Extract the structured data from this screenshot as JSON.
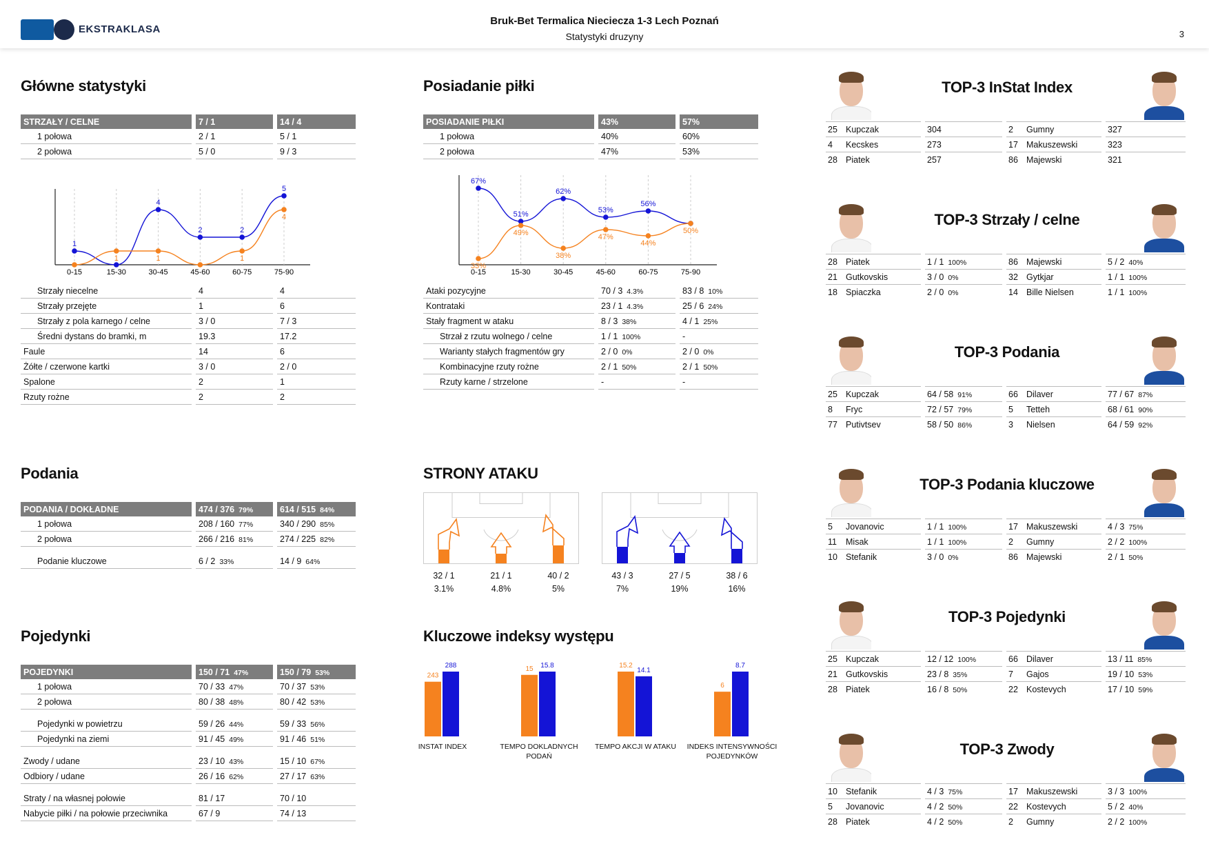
{
  "header": {
    "logo_text": "EKSTRAKLASA",
    "match": "Bruk-Bet Termalica Nieciecza 1-3 Lech Poznań",
    "subtitle": "Statystyki druzyny",
    "page": "3"
  },
  "colors": {
    "team1": "#f5821f",
    "team2": "#1414d6",
    "header_gray": "#7d7d7d"
  },
  "glowne": {
    "title": "Główne statystyki",
    "header": [
      "STRZAŁY / CELNE",
      "7 / 1",
      "14 / 4"
    ],
    "halves": [
      [
        "1 połowa",
        "2 / 1",
        "5 / 1"
      ],
      [
        "2 połowa",
        "5 / 0",
        "9 / 3"
      ]
    ],
    "rows": [
      [
        "Strzały niecelne",
        "4",
        "4"
      ],
      [
        "Strzały przejęte",
        "1",
        "6"
      ],
      [
        "Strzały z pola karnego / celne",
        "3 / 0",
        "7 / 3"
      ],
      [
        "Średni dystans do bramki, m",
        "19.3",
        "17.2"
      ],
      [
        "Faule",
        "14",
        "6"
      ],
      [
        "Żółte / czerwone kartki",
        "3 / 0",
        "2 / 0"
      ],
      [
        "Spalone",
        "2",
        "1"
      ],
      [
        "Rzuty rożne",
        "2",
        "2"
      ]
    ]
  },
  "chart_data": [
    {
      "type": "line",
      "categories": [
        "0-15",
        "15-30",
        "30-45",
        "45-60",
        "60-75",
        "75-90"
      ],
      "series": [
        {
          "values": [
            1,
            0,
            4,
            2,
            2,
            5
          ],
          "labels": [
            "1",
            "",
            "4",
            "2",
            "2",
            "5"
          ]
        },
        {
          "values": [
            0,
            1,
            1,
            0,
            1,
            4
          ],
          "labels": [
            "",
            "1",
            "1",
            "",
            "1",
            "4"
          ]
        }
      ],
      "ylim": [
        0,
        5
      ]
    },
    {
      "type": "line",
      "categories": [
        "0-15",
        "15-30",
        "30-45",
        "45-60",
        "60-75",
        "75-90"
      ],
      "series": [
        {
          "values": [
            67,
            51,
            62,
            53,
            56,
            50
          ],
          "labels": [
            "67%",
            "51%",
            "62%",
            "53%",
            "56%",
            ""
          ]
        },
        {
          "values": [
            33,
            49,
            38,
            47,
            44,
            50
          ],
          "labels": [
            "33%",
            "49%",
            "38%",
            "47%",
            "44%",
            "50%"
          ]
        }
      ],
      "ylim": [
        30,
        70
      ]
    },
    {
      "type": "bar",
      "categories": [
        "INSTAT INDEX",
        "TEMPO DOKLADNYCH PODAŃ",
        "TEMPO AKCJI W ATAKU",
        "INDEKS INTENSYWNOŚCI POJEDYNKÓW"
      ],
      "series": [
        {
          "values": [
            243,
            15,
            15.2,
            6
          ],
          "labels": [
            "243",
            "15",
            "15.2",
            "6"
          ]
        },
        {
          "values": [
            288,
            15.8,
            14.1,
            8.7
          ],
          "labels": [
            "288",
            "15.8",
            "14.1",
            "8.7"
          ]
        }
      ]
    }
  ],
  "posiadanie": {
    "title": "Posiadanie piłki",
    "header": [
      "POSIADANIE PIŁKI",
      "43%",
      "57%"
    ],
    "halves": [
      [
        "1 połowa",
        "40%",
        "60%"
      ],
      [
        "2 połowa",
        "47%",
        "53%"
      ]
    ],
    "rows": [
      {
        "label": "Ataki pozycyjne",
        "v1": "70 / 3",
        "p1": "4.3%",
        "v2": "83 / 8",
        "p2": "10%",
        "ind": false
      },
      {
        "label": "Kontrataki",
        "v1": "23 / 1",
        "p1": "4.3%",
        "v2": "25 / 6",
        "p2": "24%",
        "ind": false
      },
      {
        "label": "Stały fragment w ataku",
        "v1": "8 / 3",
        "p1": "38%",
        "v2": "4 / 1",
        "p2": "25%",
        "ind": false
      },
      {
        "label": "Strzał z rzutu wolnego / celne",
        "v1": "1 / 1",
        "p1": "100%",
        "v2": "-",
        "p2": "",
        "ind": true
      },
      {
        "label": "Warianty stałych fragmentów gry",
        "v1": "2 / 0",
        "p1": "0%",
        "v2": "2 / 0",
        "p2": "0%",
        "ind": true
      },
      {
        "label": "Kombinacyjne rzuty rożne",
        "v1": "2 / 1",
        "p1": "50%",
        "v2": "2 / 1",
        "p2": "50%",
        "ind": true
      },
      {
        "label": "Rzuty karne / strzelone",
        "v1": "-",
        "p1": "",
        "v2": "-",
        "p2": "",
        "ind": true
      }
    ]
  },
  "podania": {
    "title": "Podania",
    "header": {
      "label": "PODANIA / DOKŁADNE",
      "v1": "474 / 376",
      "p1": "79%",
      "v2": "614 / 515",
      "p2": "84%"
    },
    "rows": [
      {
        "label": "1 połowa",
        "v1": "208 / 160",
        "p1": "77%",
        "v2": "340 / 290",
        "p2": "85%"
      },
      {
        "label": "2 połowa",
        "v1": "266 / 216",
        "p1": "81%",
        "v2": "274 / 225",
        "p2": "82%"
      },
      {
        "label": "Podanie kluczowe",
        "v1": "6 / 2",
        "p1": "33%",
        "v2": "14 / 9",
        "p2": "64%"
      }
    ]
  },
  "strony": {
    "title": "STRONY ATAKU",
    "team1": [
      {
        "val": "32 / 1",
        "pct": "3.1%"
      },
      {
        "val": "21 / 1",
        "pct": "4.8%"
      },
      {
        "val": "40 / 2",
        "pct": "5%"
      }
    ],
    "team2": [
      {
        "val": "43 / 3",
        "pct": "7%"
      },
      {
        "val": "27 / 5",
        "pct": "19%"
      },
      {
        "val": "38 / 6",
        "pct": "16%"
      }
    ],
    "share1": [
      0.34,
      0.23,
      0.43
    ],
    "share2": [
      0.4,
      0.25,
      0.35
    ]
  },
  "pojedynki": {
    "title": "Pojedynki",
    "header": {
      "label": "POJEDYNKI",
      "v1": "150 / 71",
      "p1": "47%",
      "v2": "150 / 79",
      "p2": "53%"
    },
    "rows": [
      {
        "label": "1 połowa",
        "v1": "70 / 33",
        "p1": "47%",
        "v2": "70 / 37",
        "p2": "53%",
        "ind": true
      },
      {
        "label": "2 połowa",
        "v1": "80 / 38",
        "p1": "48%",
        "v2": "80 / 42",
        "p2": "53%",
        "ind": true
      },
      {
        "label": "Pojedynki w powietrzu",
        "v1": "59 / 26",
        "p1": "44%",
        "v2": "59 / 33",
        "p2": "56%",
        "ind": true
      },
      {
        "label": "Pojedynki na ziemi",
        "v1": "91 / 45",
        "p1": "49%",
        "v2": "91 / 46",
        "p2": "51%",
        "ind": true
      },
      {
        "label": "Zwody / udane",
        "v1": "23 / 10",
        "p1": "43%",
        "v2": "15 / 10",
        "p2": "67%",
        "ind": false
      },
      {
        "label": "Odbiory / udane",
        "v1": "26 / 16",
        "p1": "62%",
        "v2": "27 / 17",
        "p2": "63%",
        "ind": false
      },
      {
        "label": "Straty / na własnej połowie",
        "v1": "81 / 17",
        "p1": "",
        "v2": "70 / 10",
        "p2": "",
        "ind": false
      },
      {
        "label": "Nabycie piłki / na połowie przeciwnika",
        "v1": "67 / 9",
        "p1": "",
        "v2": "74 / 13",
        "p2": "",
        "ind": false
      }
    ]
  },
  "kluczowe": {
    "title": "Kluczowe indeksy występu"
  },
  "tops": [
    {
      "title": "TOP-3 InStat Index",
      "rows": [
        [
          "25",
          "Kupczak",
          "304",
          "",
          "2",
          "Gumny",
          "327",
          ""
        ],
        [
          "4",
          "Kecskes",
          "273",
          "",
          "17",
          "Makuszewski",
          "323",
          ""
        ],
        [
          "28",
          "Piatek",
          "257",
          "",
          "86",
          "Majewski",
          "321",
          ""
        ]
      ]
    },
    {
      "title": "TOP-3 Strzały / celne",
      "rows": [
        [
          "28",
          "Piatek",
          "1 / 1",
          "100%",
          "86",
          "Majewski",
          "5 / 2",
          "40%"
        ],
        [
          "21",
          "Gutkovskis",
          "3 / 0",
          "0%",
          "32",
          "Gytkjar",
          "1 / 1",
          "100%"
        ],
        [
          "18",
          "Spiaczka",
          "2 / 0",
          "0%",
          "14",
          "Bille Nielsen",
          "1 / 1",
          "100%"
        ]
      ]
    },
    {
      "title": "TOP-3 Podania",
      "rows": [
        [
          "25",
          "Kupczak",
          "64 / 58",
          "91%",
          "66",
          "Dilaver",
          "77 / 67",
          "87%"
        ],
        [
          "8",
          "Fryc",
          "72 / 57",
          "79%",
          "5",
          "Tetteh",
          "68 / 61",
          "90%"
        ],
        [
          "77",
          "Putivtsev",
          "58 / 50",
          "86%",
          "3",
          "Nielsen",
          "64 / 59",
          "92%"
        ]
      ]
    },
    {
      "title": "TOP-3 Podania kluczowe",
      "rows": [
        [
          "5",
          "Jovanovic",
          "1 / 1",
          "100%",
          "17",
          "Makuszewski",
          "4 / 3",
          "75%"
        ],
        [
          "11",
          "Misak",
          "1 / 1",
          "100%",
          "2",
          "Gumny",
          "2 / 2",
          "100%"
        ],
        [
          "10",
          "Stefanik",
          "3 / 0",
          "0%",
          "86",
          "Majewski",
          "2 / 1",
          "50%"
        ]
      ]
    },
    {
      "title": "TOP-3 Pojedynki",
      "rows": [
        [
          "25",
          "Kupczak",
          "12 / 12",
          "100%",
          "66",
          "Dilaver",
          "13 / 11",
          "85%"
        ],
        [
          "21",
          "Gutkovskis",
          "23 / 8",
          "35%",
          "7",
          "Gajos",
          "19 / 10",
          "53%"
        ],
        [
          "28",
          "Piatek",
          "16 / 8",
          "50%",
          "22",
          "Kostevych",
          "17 / 10",
          "59%"
        ]
      ]
    },
    {
      "title": "TOP-3 Zwody",
      "rows": [
        [
          "10",
          "Stefanik",
          "4 / 3",
          "75%",
          "17",
          "Makuszewski",
          "3 / 3",
          "100%"
        ],
        [
          "5",
          "Jovanovic",
          "4 / 2",
          "50%",
          "22",
          "Kostevych",
          "5 / 2",
          "40%"
        ],
        [
          "28",
          "Piatek",
          "4 / 2",
          "50%",
          "2",
          "Gumny",
          "2 / 2",
          "100%"
        ]
      ]
    }
  ]
}
